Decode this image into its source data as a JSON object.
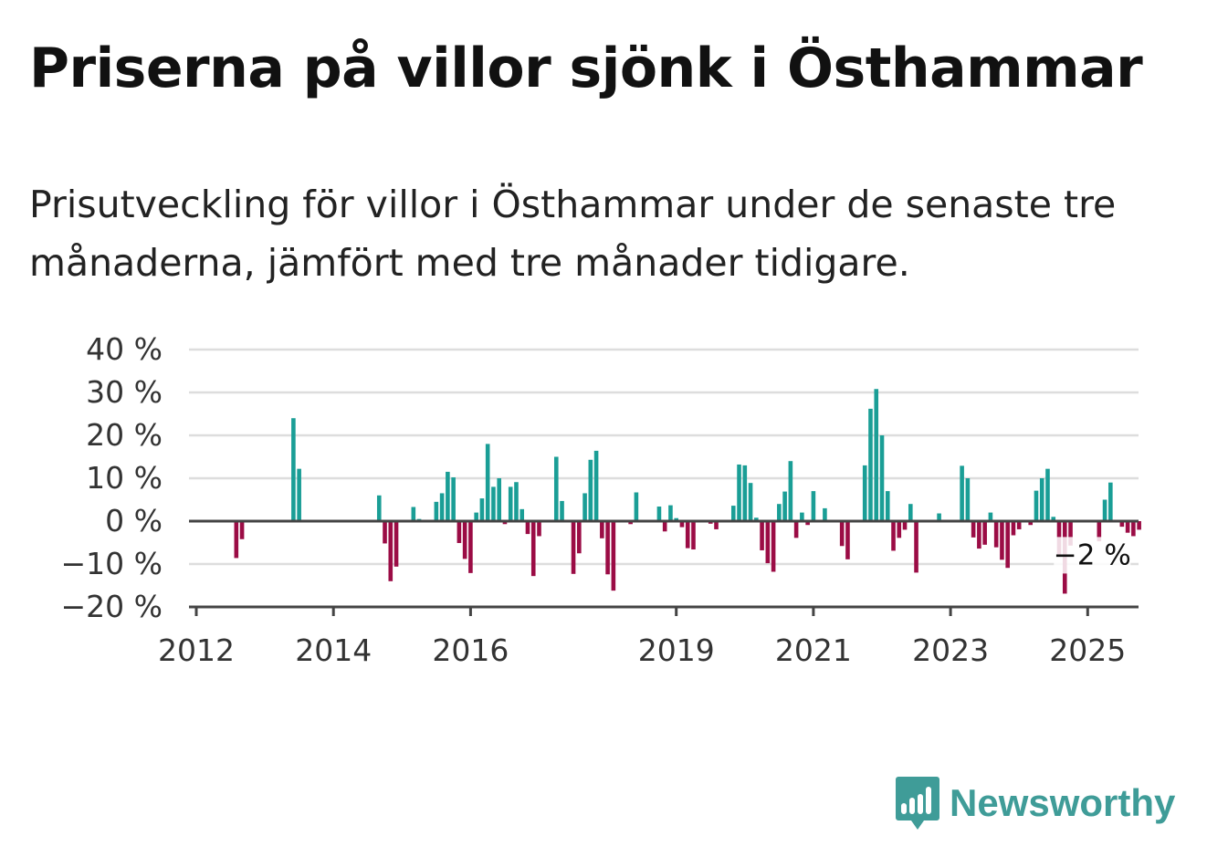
{
  "title": "Priserna på villor sjönk i Östhammar",
  "subtitle": "Prisutveckling för villor i Östhammar under de senaste tre månaderna, jämfört med tre månader tidigare.",
  "brand": {
    "name": "Newsworthy",
    "icon": "newsworthy-bar-chart-bubble-icon",
    "color": "#3f9c98"
  },
  "colors": {
    "positive": "#1a9e96",
    "negative": "#9b0c45",
    "grid": "#dddddd",
    "axis": "#444444"
  },
  "chart_data": {
    "type": "bar",
    "x_unit": "month",
    "x_start": "2012-01",
    "ylim": [
      -20,
      40
    ],
    "yticks": [
      -20,
      -10,
      0,
      10,
      20,
      30,
      40
    ],
    "ytick_labels": [
      "−20 %",
      "−10 %",
      "0 %",
      "10 %",
      "20 %",
      "30 %",
      "40 %"
    ],
    "xticks": [
      "2012",
      "2014",
      "2016",
      "2019",
      "2021",
      "2023",
      "2025"
    ],
    "grid": true,
    "annotation": {
      "text": "−2 %",
      "x": "2025-01",
      "value": -2
    },
    "values": [
      0,
      0,
      0,
      0,
      0,
      0,
      0,
      -8.6,
      -4.2,
      0,
      0,
      0,
      0,
      0,
      0,
      0,
      0,
      24,
      12.2,
      0,
      0,
      0,
      0,
      0,
      0,
      0,
      0,
      0,
      0,
      0,
      0,
      0,
      6,
      -5.2,
      -14,
      -10.6,
      0,
      0,
      3.3,
      0.5,
      0,
      0,
      4.5,
      6.5,
      11.5,
      10.2,
      -5.1,
      -8.8,
      -12.1,
      2,
      5.3,
      18,
      8,
      10,
      -0.7,
      8,
      9.1,
      2.8,
      -3,
      -12.8,
      -3.5,
      0,
      0,
      15,
      4.7,
      0,
      -12.3,
      -7.5,
      6.5,
      14.3,
      16.4,
      -4,
      -12.4,
      -16.2,
      0,
      0,
      -0.7,
      6.7,
      0,
      0,
      0,
      3.4,
      -2.4,
      3.7,
      0.7,
      -1.4,
      -6.3,
      -6.6,
      0,
      0,
      -0.6,
      -1.9,
      0,
      0,
      3.6,
      13.2,
      13,
      8.9,
      0.8,
      -6.8,
      -9.8,
      -11.8,
      4,
      6.9,
      14,
      -3.9,
      2,
      -0.9,
      7,
      0,
      3,
      0,
      0,
      -5.8,
      -8.9,
      0,
      0,
      13,
      26.2,
      30.8,
      20,
      7,
      -6.9,
      -3.9,
      -2,
      4,
      -12,
      0,
      0,
      0,
      1.8,
      0,
      0,
      0,
      12.9,
      10,
      -3.8,
      -6.4,
      -5.5,
      2,
      -6.1,
      -9,
      -10.9,
      -3.3,
      -1.9,
      0,
      -0.9,
      7.1,
      10,
      12.2,
      1,
      -7.8,
      -16.9,
      -5.7,
      0,
      0,
      0,
      0,
      -4.7,
      5,
      9,
      0,
      -1.3,
      -2.7,
      -3.5,
      -2
    ]
  }
}
